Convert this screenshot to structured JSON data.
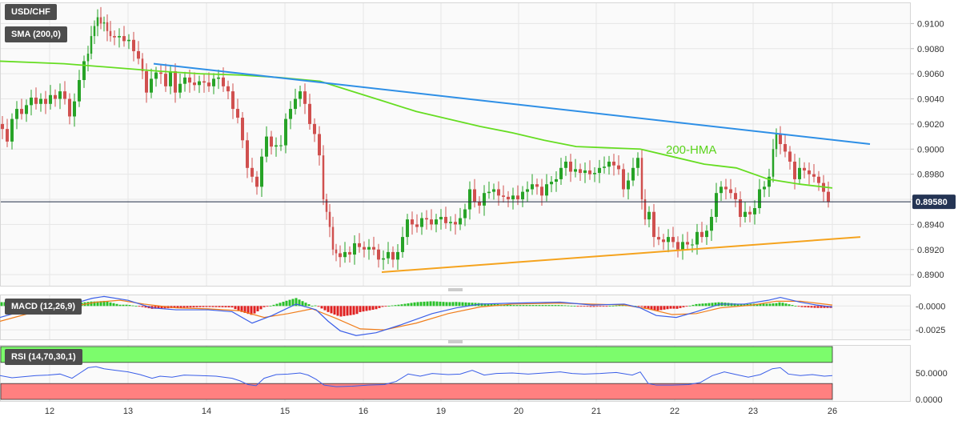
{
  "chart_data": {
    "type": "candlestick",
    "symbol": "USD/CHF",
    "x_ticks": [
      "12",
      "13",
      "14",
      "15",
      "16",
      "19",
      "20",
      "21",
      "22",
      "23",
      "26"
    ],
    "price_axis": {
      "ylim": [
        0.8895,
        0.9113
      ],
      "ticks": [
        "0.9100",
        "0.9080",
        "0.9060",
        "0.9040",
        "0.9020",
        "0.9000",
        "0.8980",
        "0.8960",
        "0.8940",
        "0.8920",
        "0.8900"
      ],
      "last_price": "0.89580",
      "last_price_value": 0.8958
    },
    "sma": {
      "legend": "SMA (200,0)",
      "color": "#66dd22",
      "label": "200-HMA",
      "points": [
        [
          0,
          0.907
        ],
        [
          40,
          0.9069
        ],
        [
          80,
          0.9068
        ],
        [
          120,
          0.9066
        ],
        [
          160,
          0.9064
        ],
        [
          200,
          0.9062
        ],
        [
          250,
          0.906
        ],
        [
          300,
          0.9059
        ],
        [
          350,
          0.9057
        ],
        [
          400,
          0.9054
        ],
        [
          440,
          0.9046
        ],
        [
          480,
          0.9038
        ],
        [
          520,
          0.903
        ],
        [
          560,
          0.9024
        ],
        [
          600,
          0.9018
        ],
        [
          640,
          0.9013
        ],
        [
          680,
          0.9007
        ],
        [
          720,
          0.9002
        ],
        [
          760,
          0.9001
        ],
        [
          800,
          0.9
        ],
        [
          840,
          0.8994
        ],
        [
          880,
          0.8988
        ],
        [
          920,
          0.8985
        ],
        [
          960,
          0.8976
        ],
        [
          1000,
          0.8972
        ],
        [
          1040,
          0.8969
        ]
      ]
    },
    "trendlines": [
      {
        "name": "resistance",
        "color": "#2e8fe6",
        "from": [
          192,
          0.9068
        ],
        "to": [
          1087,
          0.9004
        ]
      },
      {
        "name": "support",
        "color": "#f5a31e",
        "from": [
          477,
          0.8902
        ],
        "to": [
          1075,
          0.893
        ]
      }
    ],
    "price_path": [
      [
        0,
        0.902
      ],
      [
        6,
        0.9016
      ],
      [
        12,
        0.9006
      ],
      [
        18,
        0.9024
      ],
      [
        24,
        0.9032
      ],
      [
        30,
        0.9028
      ],
      [
        36,
        0.9035
      ],
      [
        42,
        0.9041
      ],
      [
        48,
        0.9036
      ],
      [
        54,
        0.904
      ],
      [
        60,
        0.9036
      ],
      [
        66,
        0.9043
      ],
      [
        72,
        0.904
      ],
      [
        78,
        0.9046
      ],
      [
        84,
        0.904
      ],
      [
        90,
        0.9026
      ],
      [
        96,
        0.9038
      ],
      [
        102,
        0.9055
      ],
      [
        108,
        0.907
      ],
      [
        112,
        0.9076
      ],
      [
        116,
        0.909
      ],
      [
        120,
        0.9098
      ],
      [
        124,
        0.9105
      ],
      [
        128,
        0.91
      ],
      [
        132,
        0.9101
      ],
      [
        136,
        0.9094
      ],
      [
        140,
        0.909
      ],
      [
        146,
        0.9089
      ],
      [
        152,
        0.909
      ],
      [
        158,
        0.9086
      ],
      [
        164,
        0.9087
      ],
      [
        170,
        0.9078
      ],
      [
        176,
        0.9072
      ],
      [
        180,
        0.9062
      ],
      [
        186,
        0.9045
      ],
      [
        192,
        0.9056
      ],
      [
        198,
        0.9061
      ],
      [
        204,
        0.906
      ],
      [
        210,
        0.905
      ],
      [
        216,
        0.9062
      ],
      [
        222,
        0.9045
      ],
      [
        228,
        0.9052
      ],
      [
        234,
        0.9057
      ],
      [
        240,
        0.9053
      ],
      [
        246,
        0.9051
      ],
      [
        252,
        0.9054
      ],
      [
        258,
        0.9053
      ],
      [
        264,
        0.905
      ],
      [
        270,
        0.9056
      ],
      [
        276,
        0.9057
      ],
      [
        282,
        0.905
      ],
      [
        288,
        0.9046
      ],
      [
        294,
        0.9032
      ],
      [
        300,
        0.9025
      ],
      [
        306,
        0.9007
      ],
      [
        312,
        0.8985
      ],
      [
        318,
        0.8978
      ],
      [
        324,
        0.897
      ],
      [
        330,
        0.8994
      ],
      [
        336,
        0.901
      ],
      [
        342,
        0.9002
      ],
      [
        348,
        0.9003
      ],
      [
        354,
        0.9003
      ],
      [
        360,
        0.9024
      ],
      [
        366,
        0.9032
      ],
      [
        372,
        0.904
      ],
      [
        378,
        0.9046
      ],
      [
        384,
        0.9036
      ],
      [
        390,
        0.902
      ],
      [
        396,
        0.9012
      ],
      [
        402,
        0.8995
      ],
      [
        406,
        0.896
      ],
      [
        410,
        0.895
      ],
      [
        414,
        0.8938
      ],
      [
        418,
        0.892
      ],
      [
        422,
        0.8917
      ],
      [
        428,
        0.8914
      ],
      [
        434,
        0.8918
      ],
      [
        440,
        0.8916
      ],
      [
        446,
        0.8925
      ],
      [
        452,
        0.8922
      ],
      [
        458,
        0.892
      ],
      [
        464,
        0.8922
      ],
      [
        470,
        0.892
      ],
      [
        476,
        0.8912
      ],
      [
        482,
        0.8913
      ],
      [
        488,
        0.8918
      ],
      [
        494,
        0.8912
      ],
      [
        500,
        0.8918
      ],
      [
        506,
        0.893
      ],
      [
        512,
        0.8944
      ],
      [
        518,
        0.894
      ],
      [
        524,
        0.8938
      ],
      [
        530,
        0.8945
      ],
      [
        536,
        0.8944
      ],
      [
        542,
        0.894
      ],
      [
        548,
        0.8944
      ],
      [
        554,
        0.8946
      ],
      [
        560,
        0.8941
      ],
      [
        566,
        0.8942
      ],
      [
        572,
        0.894
      ],
      [
        578,
        0.8945
      ],
      [
        584,
        0.8952
      ],
      [
        590,
        0.8968
      ],
      [
        596,
        0.8958
      ],
      [
        602,
        0.8955
      ],
      [
        608,
        0.8965
      ],
      [
        614,
        0.8966
      ],
      [
        620,
        0.8968
      ],
      [
        626,
        0.8963
      ],
      [
        632,
        0.8962
      ],
      [
        638,
        0.896
      ],
      [
        644,
        0.8963
      ],
      [
        650,
        0.896
      ],
      [
        656,
        0.8966
      ],
      [
        662,
        0.8968
      ],
      [
        668,
        0.8972
      ],
      [
        674,
        0.897
      ],
      [
        680,
        0.8963
      ],
      [
        686,
        0.8972
      ],
      [
        692,
        0.8974
      ],
      [
        698,
        0.8976
      ],
      [
        704,
        0.8985
      ],
      [
        710,
        0.899
      ],
      [
        716,
        0.8982
      ],
      [
        722,
        0.8984
      ],
      [
        728,
        0.8981
      ],
      [
        734,
        0.8983
      ],
      [
        740,
        0.898
      ],
      [
        746,
        0.8981
      ],
      [
        752,
        0.8985
      ],
      [
        758,
        0.8986
      ],
      [
        764,
        0.899
      ],
      [
        770,
        0.8987
      ],
      [
        776,
        0.8984
      ],
      [
        782,
        0.8968
      ],
      [
        788,
        0.8975
      ],
      [
        794,
        0.8985
      ],
      [
        800,
        0.8993
      ],
      [
        804,
        0.896
      ],
      [
        808,
        0.8944
      ],
      [
        814,
        0.895
      ],
      [
        820,
        0.893
      ],
      [
        826,
        0.8928
      ],
      [
        832,
        0.8926
      ],
      [
        838,
        0.893
      ],
      [
        844,
        0.8926
      ],
      [
        850,
        0.892
      ],
      [
        856,
        0.8926
      ],
      [
        862,
        0.8924
      ],
      [
        868,
        0.8924
      ],
      [
        874,
        0.8934
      ],
      [
        880,
        0.893
      ],
      [
        886,
        0.8935
      ],
      [
        892,
        0.8946
      ],
      [
        898,
        0.8965
      ],
      [
        904,
        0.897
      ],
      [
        910,
        0.8968
      ],
      [
        916,
        0.8965
      ],
      [
        922,
        0.896
      ],
      [
        928,
        0.8946
      ],
      [
        934,
        0.895
      ],
      [
        940,
        0.8948
      ],
      [
        946,
        0.8953
      ],
      [
        952,
        0.8968
      ],
      [
        958,
        0.897
      ],
      [
        964,
        0.8978
      ],
      [
        968,
        0.9
      ],
      [
        972,
        0.9012
      ],
      [
        978,
        0.9004
      ],
      [
        984,
        0.8998
      ],
      [
        990,
        0.899
      ],
      [
        996,
        0.8976
      ],
      [
        1002,
        0.8985
      ],
      [
        1008,
        0.8983
      ],
      [
        1014,
        0.898
      ],
      [
        1020,
        0.8978
      ],
      [
        1026,
        0.8973
      ],
      [
        1032,
        0.8966
      ],
      [
        1038,
        0.8958
      ]
    ],
    "macd": {
      "legend": "MACD (12,26,9)",
      "ylim": [
        -0.0035,
        0.0012
      ],
      "ticks": [
        "-0.0000",
        "-0.0025"
      ],
      "macd_line": [
        [
          0,
          -0.0012
        ],
        [
          30,
          -0.0005
        ],
        [
          60,
          0.0
        ],
        [
          90,
          0.0002
        ],
        [
          115,
          0.0008
        ],
        [
          130,
          0.001
        ],
        [
          160,
          0.0006
        ],
        [
          190,
          -0.0002
        ],
        [
          220,
          -0.0004
        ],
        [
          260,
          -0.0004
        ],
        [
          290,
          -0.0006
        ],
        [
          315,
          -0.0018
        ],
        [
          340,
          -0.001
        ],
        [
          370,
          0.0002
        ],
        [
          395,
          -0.0004
        ],
        [
          410,
          -0.0016
        ],
        [
          425,
          -0.0026
        ],
        [
          445,
          -0.0031
        ],
        [
          470,
          -0.0028
        ],
        [
          500,
          -0.002
        ],
        [
          540,
          -0.0008
        ],
        [
          570,
          -0.0002
        ],
        [
          600,
          0.0002
        ],
        [
          640,
          0.0003
        ],
        [
          700,
          0.0004
        ],
        [
          740,
          0.0001
        ],
        [
          780,
          0.0002
        ],
        [
          800,
          -0.0002
        ],
        [
          820,
          -0.001
        ],
        [
          845,
          -0.0012
        ],
        [
          870,
          -0.0006
        ],
        [
          900,
          0.0002
        ],
        [
          930,
          0.0002
        ],
        [
          960,
          0.0006
        ],
        [
          975,
          0.0009
        ],
        [
          1000,
          0.0004
        ],
        [
          1020,
          0.0001
        ],
        [
          1040,
          -0.0001
        ]
      ],
      "signal_line": [
        [
          0,
          -0.0016
        ],
        [
          40,
          -0.0007
        ],
        [
          80,
          -0.0002
        ],
        [
          120,
          0.0004
        ],
        [
          150,
          0.0006
        ],
        [
          180,
          0.0002
        ],
        [
          220,
          -0.0002
        ],
        [
          260,
          -0.0003
        ],
        [
          300,
          -0.0005
        ],
        [
          330,
          -0.0012
        ],
        [
          360,
          -0.0008
        ],
        [
          390,
          -0.0003
        ],
        [
          420,
          -0.0013
        ],
        [
          450,
          -0.0024
        ],
        [
          480,
          -0.0025
        ],
        [
          520,
          -0.0018
        ],
        [
          560,
          -0.0008
        ],
        [
          600,
          -0.0001
        ],
        [
          640,
          0.0002
        ],
        [
          700,
          0.0003
        ],
        [
          740,
          0.0002
        ],
        [
          780,
          0.0001
        ],
        [
          810,
          -0.0003
        ],
        [
          840,
          -0.0009
        ],
        [
          870,
          -0.0008
        ],
        [
          900,
          -0.0002
        ],
        [
          940,
          0.0001
        ],
        [
          970,
          0.0005
        ],
        [
          1000,
          0.0005
        ],
        [
          1040,
          0.0001
        ]
      ]
    },
    "rsi": {
      "legend": "RSI (14,70,30,1)",
      "ylim": [
        0,
        100
      ],
      "overbought": 70,
      "oversold": 30,
      "ticks": [
        "50.0000",
        "0.0000"
      ],
      "points": [
        [
          0,
          45
        ],
        [
          15,
          41
        ],
        [
          30,
          43
        ],
        [
          45,
          45
        ],
        [
          60,
          46
        ],
        [
          75,
          48
        ],
        [
          90,
          40
        ],
        [
          100,
          50
        ],
        [
          110,
          60
        ],
        [
          120,
          62
        ],
        [
          130,
          58
        ],
        [
          145,
          55
        ],
        [
          160,
          52
        ],
        [
          175,
          47
        ],
        [
          190,
          40
        ],
        [
          200,
          44
        ],
        [
          215,
          42
        ],
        [
          230,
          46
        ],
        [
          250,
          45
        ],
        [
          270,
          44
        ],
        [
          290,
          40
        ],
        [
          300,
          35
        ],
        [
          310,
          28
        ],
        [
          320,
          26
        ],
        [
          330,
          40
        ],
        [
          345,
          47
        ],
        [
          360,
          48
        ],
        [
          375,
          50
        ],
        [
          385,
          46
        ],
        [
          395,
          38
        ],
        [
          405,
          27
        ],
        [
          420,
          24
        ],
        [
          440,
          25
        ],
        [
          460,
          27
        ],
        [
          480,
          28
        ],
        [
          495,
          34
        ],
        [
          510,
          48
        ],
        [
          525,
          44
        ],
        [
          540,
          49
        ],
        [
          560,
          47
        ],
        [
          575,
          48
        ],
        [
          590,
          55
        ],
        [
          605,
          46
        ],
        [
          620,
          49
        ],
        [
          640,
          50
        ],
        [
          660,
          48
        ],
        [
          680,
          50
        ],
        [
          700,
          52
        ],
        [
          715,
          49
        ],
        [
          730,
          48
        ],
        [
          750,
          49
        ],
        [
          770,
          51
        ],
        [
          790,
          46
        ],
        [
          800,
          52
        ],
        [
          810,
          30
        ],
        [
          820,
          27
        ],
        [
          840,
          27
        ],
        [
          860,
          28
        ],
        [
          875,
          32
        ],
        [
          890,
          45
        ],
        [
          905,
          52
        ],
        [
          920,
          47
        ],
        [
          935,
          42
        ],
        [
          950,
          47
        ],
        [
          965,
          58
        ],
        [
          975,
          60
        ],
        [
          985,
          48
        ],
        [
          1000,
          45
        ],
        [
          1015,
          47
        ],
        [
          1030,
          44
        ],
        [
          1040,
          45
        ]
      ]
    }
  },
  "colors": {
    "bull": "#27a327",
    "bear": "#d0504f",
    "grid": "#e6e6e6",
    "price_line": "#1f2a44",
    "macd_line": "#3a5ee8",
    "signal_line": "#f07d1a",
    "hist_pos": "#2ac12a",
    "hist_neg": "#e02020",
    "rsi_line": "#3a5ee8",
    "rsi_overbought": "#7cfc6c",
    "rsi_oversold": "#ff8080"
  }
}
